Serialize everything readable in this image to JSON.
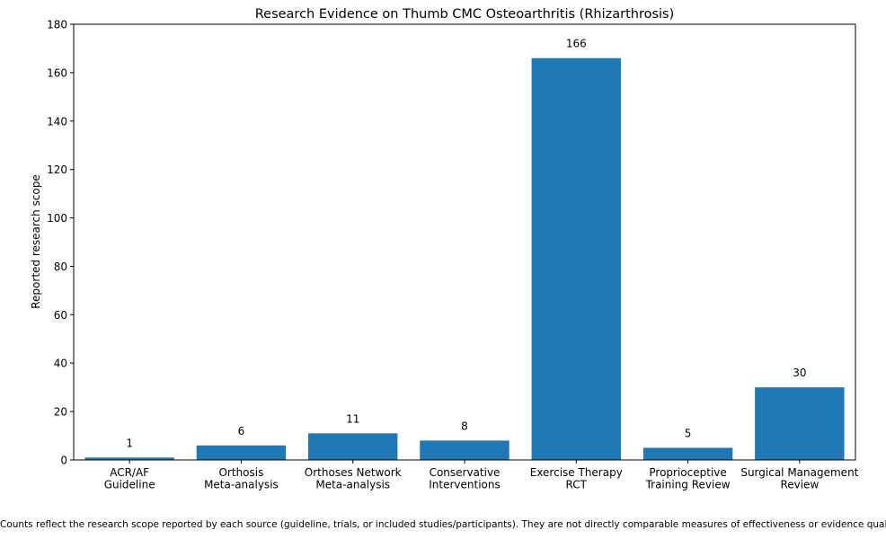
{
  "chart_data": {
    "type": "bar",
    "title": "Research Evidence on Thumb CMC Osteoarthritis (Rhizarthrosis)",
    "xlabel": "",
    "ylabel": "Reported research scope",
    "ylim": [
      0,
      180
    ],
    "yticks": [
      0,
      20,
      40,
      60,
      80,
      100,
      120,
      140,
      160,
      180
    ],
    "categories": [
      [
        "ACR/AF",
        "Guideline"
      ],
      [
        "Orthosis",
        "Meta-analysis"
      ],
      [
        "Orthoses Network",
        "Meta-analysis"
      ],
      [
        "Conservative",
        "Interventions"
      ],
      [
        "Exercise Therapy",
        "RCT"
      ],
      [
        "Proprioceptive",
        "Training Review"
      ],
      [
        "Surgical Management",
        "Review"
      ]
    ],
    "values": [
      1,
      6,
      11,
      8,
      166,
      5,
      30
    ],
    "data_labels": [
      "1",
      "6",
      "11",
      "8",
      "166",
      "5",
      "30"
    ],
    "bar_color": "#1f77b4",
    "grid": false
  },
  "footnote": "Counts reflect the research scope reported by each source (guideline, trials, or included studies/participants). They are not directly comparable measures of effectiveness or evidence quality."
}
